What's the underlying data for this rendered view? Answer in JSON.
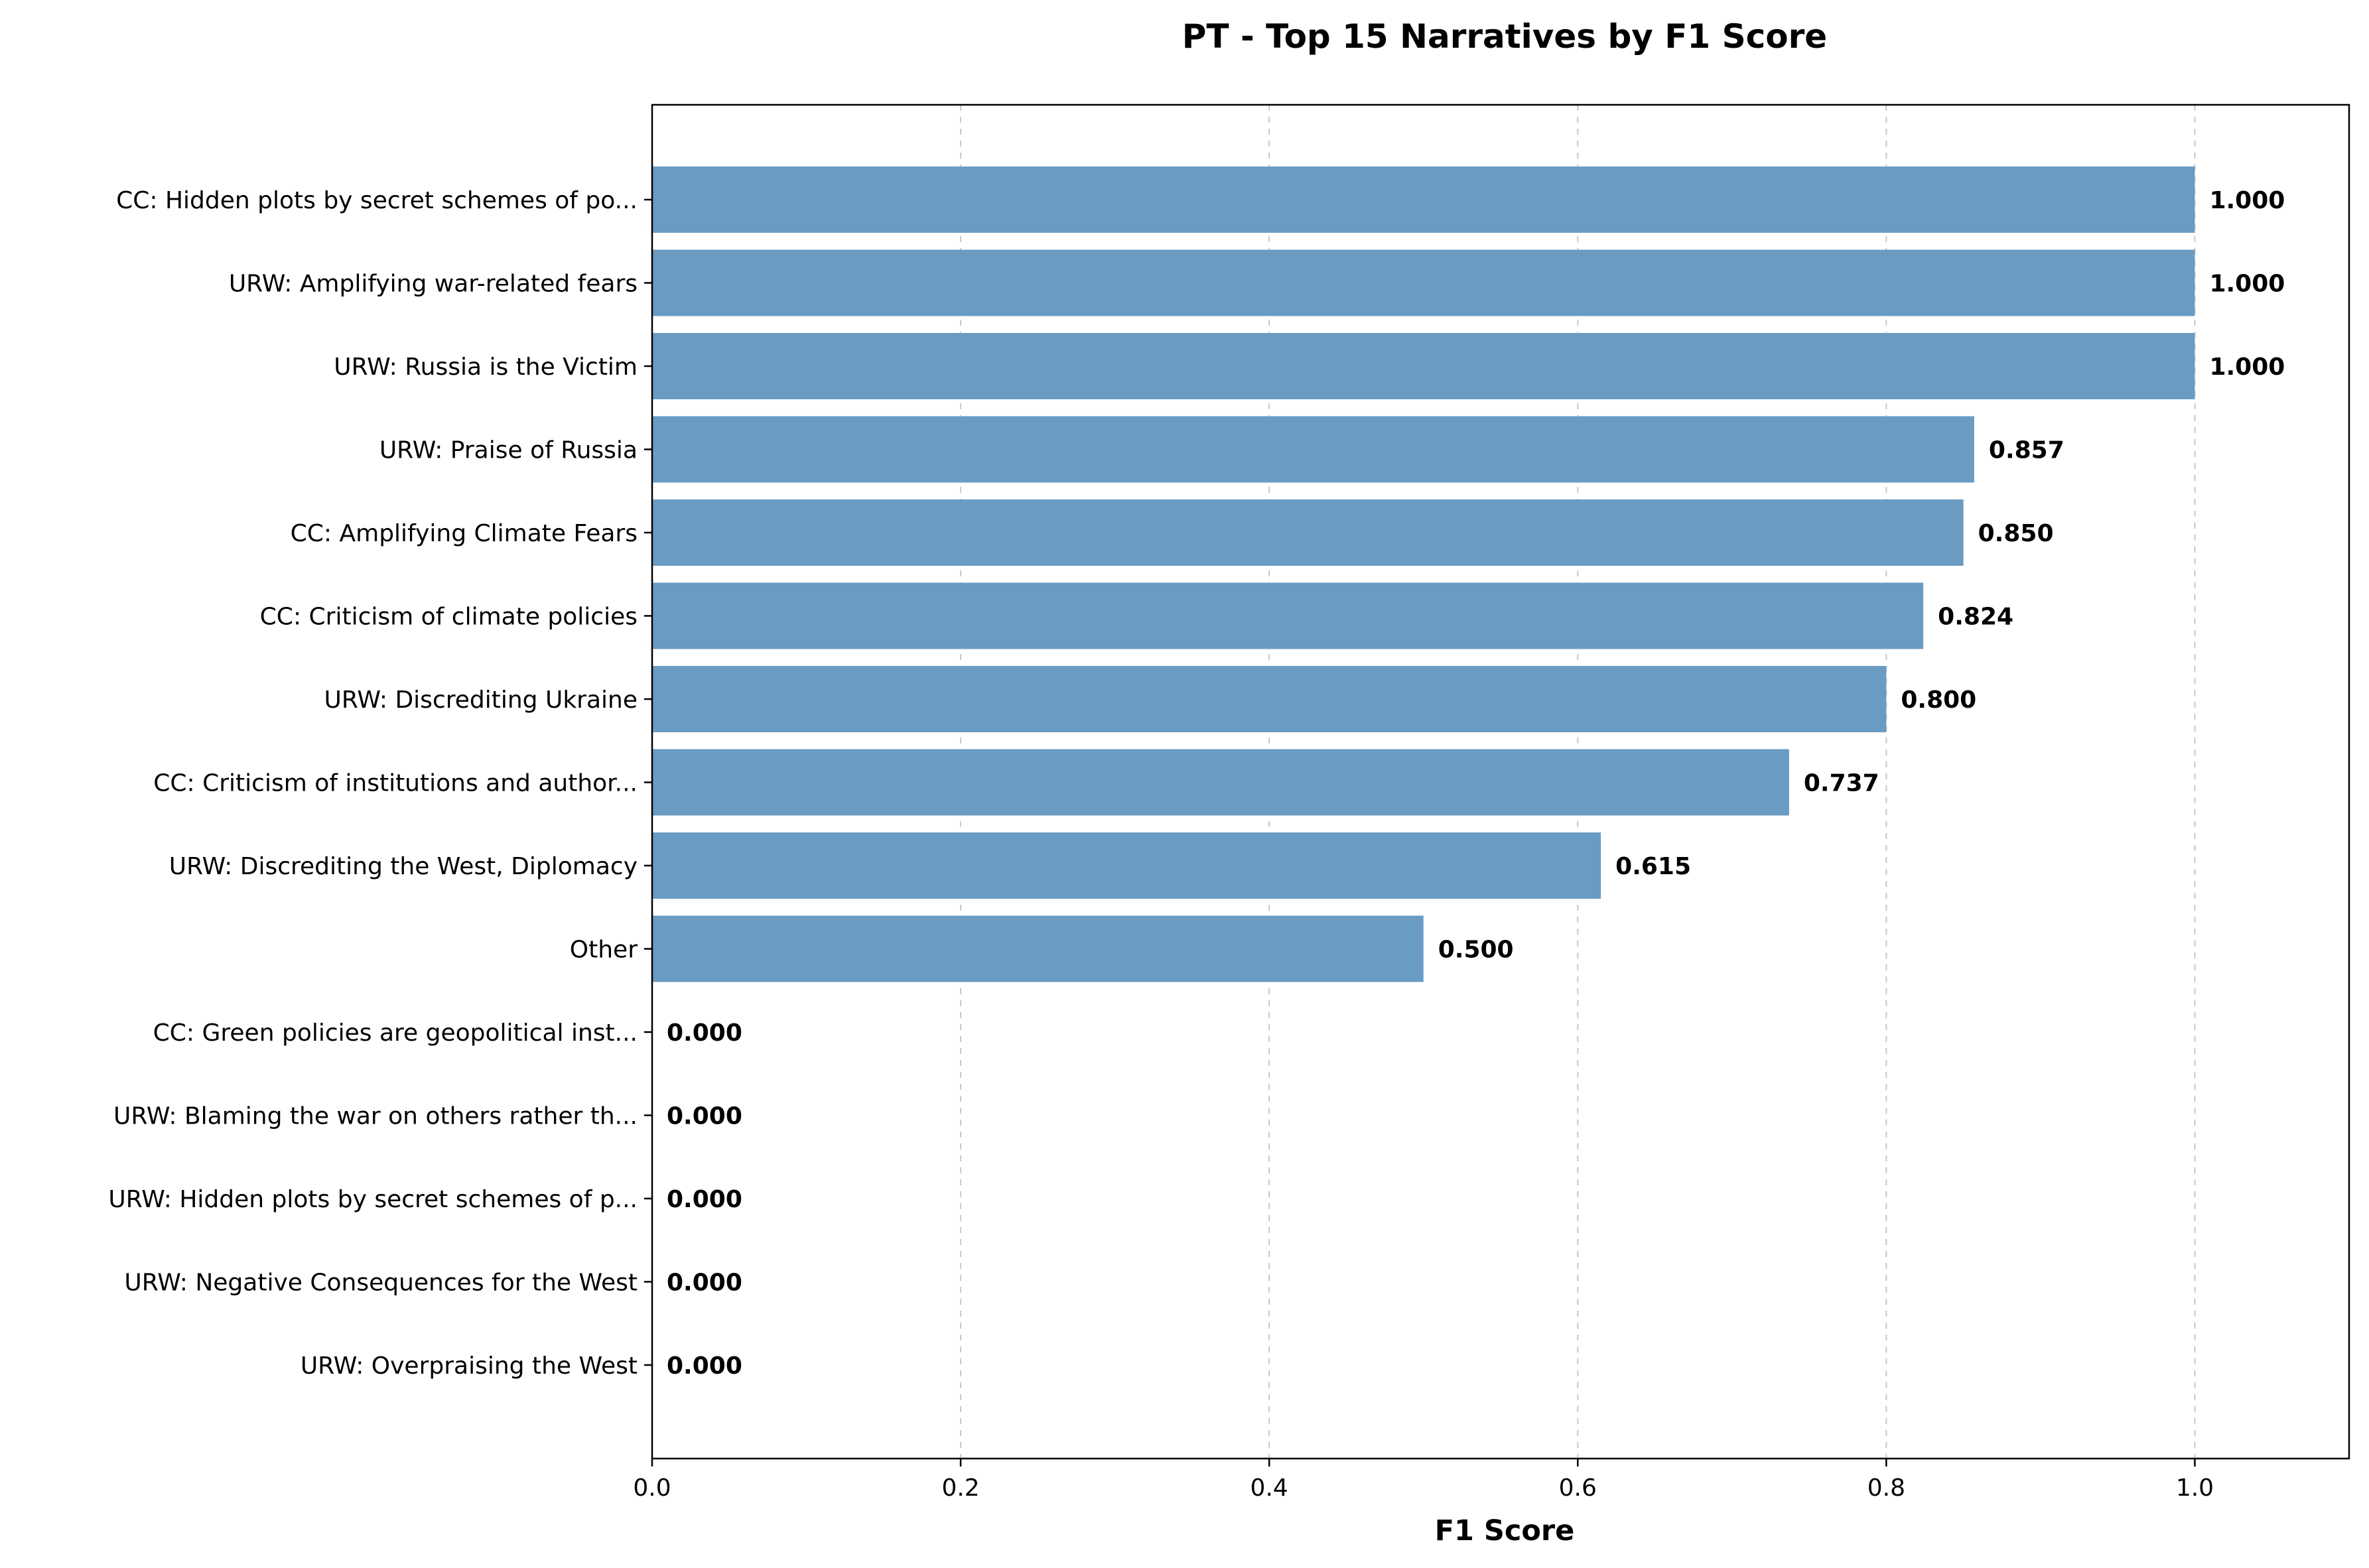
{
  "chart_data": {
    "type": "bar",
    "orientation": "horizontal",
    "title": "PT - Top 15 Narratives by F1 Score",
    "xlabel": "F1 Score",
    "ylabel": "",
    "xlim": [
      0,
      1.1
    ],
    "xticks": [
      "0.0",
      "0.2",
      "0.4",
      "0.6",
      "0.8",
      "1.0"
    ],
    "xtick_values": [
      0,
      0.2,
      0.4,
      0.6,
      0.8,
      1.0
    ],
    "grid": "x-axis dashed",
    "bar_color": "#6a9bc3",
    "categories": [
      "CC: Hidden plots by secret schemes of po...",
      "URW: Amplifying war-related fears",
      "URW: Russia is the Victim",
      "URW: Praise of Russia",
      "CC: Amplifying Climate Fears",
      "CC: Criticism of climate policies",
      "URW: Discrediting Ukraine",
      "CC: Criticism of institutions and author...",
      "URW: Discrediting the West, Diplomacy",
      "Other",
      "CC: Green policies are geopolitical inst...",
      "URW: Blaming the war on others rather th...",
      "URW: Hidden plots by secret schemes of p...",
      "URW: Negative Consequences for the West",
      "URW: Overpraising the West"
    ],
    "values": [
      1.0,
      1.0,
      1.0,
      0.857,
      0.85,
      0.824,
      0.8,
      0.737,
      0.615,
      0.5,
      0.0,
      0.0,
      0.0,
      0.0,
      0.0
    ],
    "value_labels": [
      "1.000",
      "1.000",
      "1.000",
      "0.857",
      "0.850",
      "0.824",
      "0.800",
      "0.737",
      "0.615",
      "0.500",
      "0.000",
      "0.000",
      "0.000",
      "0.000",
      "0.000"
    ]
  }
}
